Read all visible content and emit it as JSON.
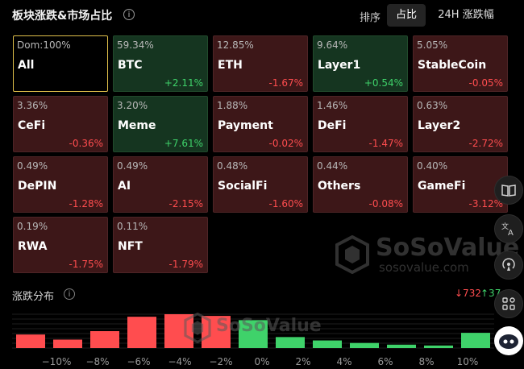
{
  "header": {
    "title": "板块涨跌&市场占比",
    "info_glyph": "i",
    "sort_label": "排序",
    "tabs": [
      {
        "label": "占比",
        "active": true
      },
      {
        "label": "24H 涨跌幅",
        "active": false
      }
    ]
  },
  "tiles": [
    {
      "dom": "Dom:100%",
      "name": "All",
      "change": "",
      "tone": "all"
    },
    {
      "dom": "59.34%",
      "name": "BTC",
      "change": "+2.11%",
      "tone": "pos"
    },
    {
      "dom": "12.85%",
      "name": "ETH",
      "change": "-1.67%",
      "tone": "neg"
    },
    {
      "dom": "9.64%",
      "name": "Layer1",
      "change": "+0.54%",
      "tone": "pos"
    },
    {
      "dom": "5.05%",
      "name": "StableCoin",
      "change": "-0.05%",
      "tone": "neg"
    },
    {
      "dom": "3.36%",
      "name": "CeFi",
      "change": "-0.36%",
      "tone": "neg"
    },
    {
      "dom": "3.20%",
      "name": "Meme",
      "change": "+7.61%",
      "tone": "pos"
    },
    {
      "dom": "1.88%",
      "name": "Payment",
      "change": "-0.02%",
      "tone": "neg"
    },
    {
      "dom": "1.46%",
      "name": "DeFi",
      "change": "-1.47%",
      "tone": "neg"
    },
    {
      "dom": "0.63%",
      "name": "Layer2",
      "change": "-2.72%",
      "tone": "neg"
    },
    {
      "dom": "0.49%",
      "name": "DePIN",
      "change": "-1.28%",
      "tone": "neg"
    },
    {
      "dom": "0.49%",
      "name": "AI",
      "change": "-2.15%",
      "tone": "neg"
    },
    {
      "dom": "0.48%",
      "name": "SocialFi",
      "change": "-1.60%",
      "tone": "neg"
    },
    {
      "dom": "0.44%",
      "name": "Others",
      "change": "-0.08%",
      "tone": "neg"
    },
    {
      "dom": "0.40%",
      "name": "GameFi",
      "change": "-3.12%",
      "tone": "neg"
    },
    {
      "dom": "0.19%",
      "name": "RWA",
      "change": "-1.75%",
      "tone": "neg"
    },
    {
      "dom": "0.11%",
      "name": "NFT",
      "change": "-1.79%",
      "tone": "neg"
    }
  ],
  "distribution": {
    "title": "涨跌分布",
    "info_glyph": "i",
    "down_count": "↓732",
    "up_count": "↑37"
  },
  "chart_data": {
    "type": "bar",
    "x_ticks": [
      "−10%",
      "−8%",
      "−6%",
      "−4%",
      "−2%",
      "0%",
      "2%",
      "4%",
      "6%",
      "8%",
      "10%"
    ],
    "bars": [
      {
        "value": 16,
        "color": "#ff4d4f"
      },
      {
        "value": 10,
        "color": "#ff4d4f"
      },
      {
        "value": 20,
        "color": "#ff4d4f"
      },
      {
        "value": 37,
        "color": "#ff4d4f"
      },
      {
        "value": 40,
        "color": "#ff4d4f"
      },
      {
        "value": 38,
        "color": "#ff4d4f"
      },
      {
        "value": 33,
        "color": "#3fd26a"
      },
      {
        "value": 13,
        "color": "#3fd26a"
      },
      {
        "value": 9,
        "color": "#3fd26a"
      },
      {
        "value": 6,
        "color": "#3fd26a"
      },
      {
        "value": 4,
        "color": "#3fd26a"
      },
      {
        "value": 3,
        "color": "#3fd26a"
      },
      {
        "value": 18,
        "color": "#3fd26a"
      }
    ],
    "ylim": [
      0,
      40
    ],
    "grid": true
  },
  "watermark": {
    "main": "SoSoValue",
    "sub": "sosovalue.com"
  },
  "colors": {
    "negative": "#ff4d4f",
    "positive": "#3fd26a",
    "accent": "#e0c04a"
  },
  "side_icons": [
    "book-icon",
    "translate-icon",
    "broadcast-icon",
    "apps-icon",
    "bot-icon"
  ]
}
